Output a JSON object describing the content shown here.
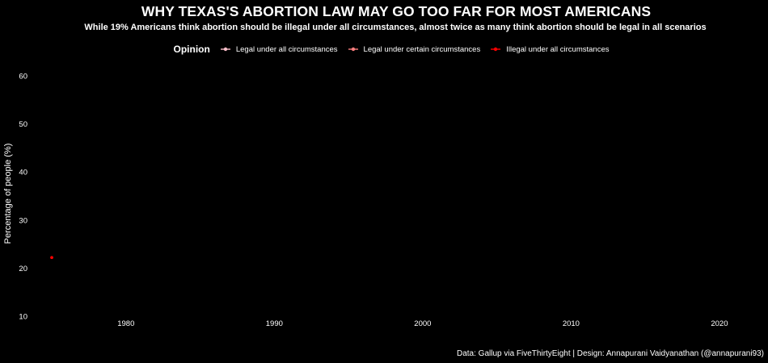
{
  "chart_data": {
    "type": "line",
    "title": "WHY TEXAS'S ABORTION LAW MAY GO TOO FAR FOR MOST AMERICANS",
    "subtitle": "While 19% Americans think abortion should be illegal under all circumstances, almost twice as many think abortion should be legal in all scenarios",
    "xlabel": "",
    "ylabel": "Percentage of people (%)",
    "xlim": [
      1973.8,
      2023
    ],
    "ylim": [
      10,
      62
    ],
    "x_ticks": [
      1980,
      1990,
      2000,
      2010,
      2020
    ],
    "y_ticks": [
      10,
      20,
      30,
      40,
      50,
      60
    ],
    "grid": false,
    "legend": {
      "title": "Opinion",
      "placement": "top"
    },
    "series": [
      {
        "name": "Legal under all circumstances",
        "color": "#ffc0cb",
        "points": []
      },
      {
        "name": "Legal under certain circumstances",
        "color": "#ff7f7f",
        "points": []
      },
      {
        "name": "Illegal under all circumstances",
        "color": "#ff0000",
        "points": [
          {
            "x": 1975,
            "y": 22.2
          }
        ]
      }
    ],
    "caption": "Data: Gallup via FiveThirtyEight | Design: Annapurani Vaidyanathan (@annapurani93)"
  }
}
